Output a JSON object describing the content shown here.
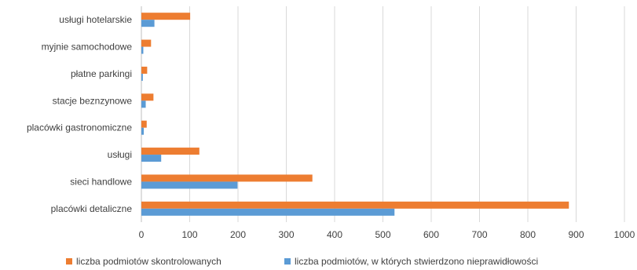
{
  "chart_data": {
    "type": "bar",
    "orientation": "horizontal",
    "categories": [
      "usługi hotelarskie",
      "myjnie samochodowe",
      "płatne parkingi",
      "stacje beznzynowe",
      "placówki gastronomiczne",
      "usługi",
      "sieci handlowe",
      "placówki detaliczne"
    ],
    "series": [
      {
        "name": "liczba podmiotów skontrolowanych",
        "color": "#ED7D31",
        "values": [
          101,
          20,
          12,
          25,
          11,
          120,
          354,
          885
        ]
      },
      {
        "name": "liczba podmiotów, w których stwierdzono nieprawidłowości",
        "color": "#5B9BD5",
        "values": [
          27,
          4,
          3,
          9,
          5,
          41,
          199,
          524
        ]
      }
    ],
    "xlim": [
      0,
      1000
    ],
    "xticks": [
      "0",
      "100",
      "200",
      "300",
      "400",
      "500",
      "600",
      "700",
      "800",
      "900",
      "1000"
    ],
    "grid": true,
    "legend_position": "bottom",
    "title": "",
    "xlabel": "",
    "ylabel": ""
  }
}
